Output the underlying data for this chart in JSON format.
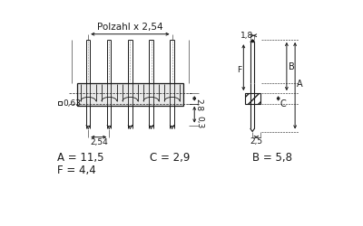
{
  "bg_color": "#ffffff",
  "line_color": "#1a1a1a",
  "gray_fill": "#c8c8c8",
  "hatch_color": "#555555",
  "title_text": "Polzahl x 2,54",
  "dim_063": "0,63",
  "dim_254": "2,54",
  "dim_28": "2,8",
  "dim_03": "0,3",
  "dim_18": "1,8",
  "dim_25": "2,5",
  "label_A": "A",
  "label_B": "B",
  "label_C": "C",
  "label_F": "F",
  "val_A": "A = 11,5",
  "val_B": "B = 5,8",
  "val_C": "C = 2,9",
  "val_F": "F = 4,4",
  "n_pins": 5,
  "fs_dim": 6.5,
  "fs_lbl": 7,
  "fs_val": 8.5,
  "fs_title": 7.5
}
